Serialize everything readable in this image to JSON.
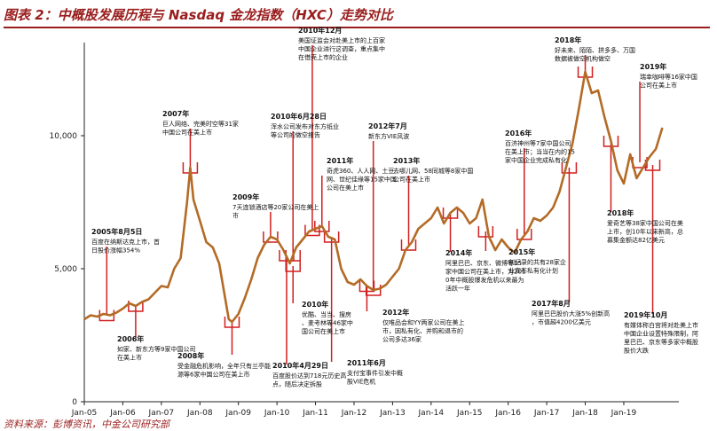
{
  "title": "图表 2：中概股发展历程与 Nasdaq 金龙指数（HXC）走势对比",
  "source": "资料来源：彭博资讯，中金公司研究部",
  "colors": {
    "line": "#b36b26",
    "annotation": "#d11f1f",
    "axis": "#222222",
    "title": "#9a1d1d"
  },
  "chart_data": {
    "type": "line",
    "xlabel": "",
    "ylabel": "",
    "x_ticks": [
      "Jan-05",
      "Jan-06",
      "Jan-07",
      "Jan-08",
      "Jan-09",
      "Jan-10",
      "Jan-11",
      "Jan-12",
      "Jan-13",
      "Jan-14",
      "Jan-15",
      "Jan-16",
      "Jan-17",
      "Jan-18",
      "Jan-19"
    ],
    "y_ticks": [
      0,
      5000,
      10000
    ],
    "y_tick_labels": [
      "0",
      "5,000",
      "10,000"
    ],
    "ylim": [
      0,
      13500
    ],
    "xlim": [
      "2005-01",
      "2020-02"
    ],
    "grid": false,
    "series": [
      {
        "x": [
          "2005-01",
          "2005-03",
          "2005-05",
          "2005-07",
          "2005-09",
          "2005-11",
          "2006-01",
          "2006-03",
          "2006-05",
          "2006-07",
          "2006-09",
          "2006-11",
          "2007-01",
          "2007-03",
          "2007-05",
          "2007-07",
          "2007-09",
          "2007-10",
          "2007-11",
          "2008-01",
          "2008-03",
          "2008-05",
          "2008-07",
          "2008-09",
          "2008-10",
          "2008-11",
          "2009-01",
          "2009-03",
          "2009-05",
          "2009-07",
          "2009-09",
          "2009-11",
          "2010-01",
          "2010-03",
          "2010-05",
          "2010-07",
          "2010-09",
          "2010-11",
          "2011-01",
          "2011-03",
          "2011-05",
          "2011-07",
          "2011-09",
          "2011-11",
          "2012-01",
          "2012-03",
          "2012-05",
          "2012-07",
          "2012-09",
          "2012-11",
          "2013-01",
          "2013-03",
          "2013-05",
          "2013-07",
          "2013-09",
          "2013-11",
          "2014-01",
          "2014-03",
          "2014-05",
          "2014-07",
          "2014-09",
          "2014-11",
          "2015-01",
          "2015-03",
          "2015-05",
          "2015-07",
          "2015-09",
          "2015-11",
          "2016-01",
          "2016-03",
          "2016-05",
          "2016-07",
          "2016-09",
          "2016-11",
          "2017-01",
          "2017-03",
          "2017-05",
          "2017-07",
          "2017-09",
          "2017-11",
          "2018-01",
          "2018-03",
          "2018-05",
          "2018-07",
          "2018-09",
          "2018-11",
          "2019-01",
          "2019-03",
          "2019-05",
          "2019-07",
          "2019-09",
          "2019-11",
          "2020-01"
        ],
        "values": [
          3100,
          3250,
          3200,
          3300,
          3250,
          3350,
          3500,
          3700,
          3600,
          3750,
          3850,
          4100,
          4350,
          4300,
          5000,
          5400,
          7500,
          8800,
          7600,
          6800,
          6000,
          5800,
          5200,
          3800,
          3100,
          3000,
          3300,
          3900,
          4600,
          5400,
          5900,
          6200,
          6100,
          5700,
          5200,
          5800,
          6100,
          6400,
          6500,
          6600,
          6200,
          6100,
          5000,
          4500,
          4400,
          4600,
          4350,
          4200,
          4250,
          4400,
          4700,
          5000,
          5700,
          6000,
          6500,
          6700,
          6900,
          7300,
          6700,
          7100,
          7300,
          7100,
          6700,
          6900,
          7600,
          6200,
          5700,
          6100,
          5800,
          5600,
          6100,
          6400,
          6900,
          6800,
          7000,
          7300,
          7900,
          8800,
          9700,
          11000,
          12400,
          11600,
          11700,
          10700,
          9800,
          8700,
          8200,
          9300,
          8400,
          8800,
          9200,
          9500,
          10300
        ]
      }
    ],
    "annotations": [
      {
        "date": "2005年8月5日",
        "text": "百度在纳斯达克上市，首日股价涨幅354%"
      },
      {
        "date": "2006年",
        "text": "如家、新东方等9家中国公司在美上市"
      },
      {
        "date": "2007年",
        "text": "巨人网络、完美时空等31家中国公司在美上市"
      },
      {
        "date": "2008年",
        "text": "受金融危机影响，全年只有兰亭能源等6家中国公司在美上市"
      },
      {
        "date": "2009年",
        "text": "7天连锁酒店等20家公司在美上市"
      },
      {
        "date": "2010年12月",
        "text": "美国证监会对赴美上市的上百家中国企业进行这调查，重点集中在借壳上市的企业"
      },
      {
        "date": "2010年6月28日",
        "text": "浑水公司发布对东方纸业等公司的做空报告"
      },
      {
        "date": "2010年",
        "text": "优酷、当当、搜房、麦考林等46家中国公司在美上市"
      },
      {
        "date": "2010年4月29日",
        "text": "百度股价达到718元历史高点，随后决定拆股"
      },
      {
        "date": "2011年",
        "text": "奇虎360、人人网、土豆网、世纪佳缘等15家中国公司在美上市"
      },
      {
        "date": "2011年6月",
        "text": "支付宝事件引发中概股VIE危机"
      },
      {
        "date": "2012年7月",
        "text": "新东方VIE风波"
      },
      {
        "date": "2012年",
        "text": "仅唯品会和YY两家公司在美上市，因私有化、并购和退市的公司多达36家"
      },
      {
        "date": "2013年",
        "text": "去哪儿网、58同城等8家中国公司在美上市"
      },
      {
        "date": "2014年",
        "text": "阿里巴巴、京东、微博等15家中国公司在美上市，为2010年中概股爆发危机以来最为活跃一年"
      },
      {
        "date": "2015年",
        "text": "创纪录的共有28家企业宣布私有化计划"
      },
      {
        "date": "2016年",
        "text": "百济神州等7家中国公司在美上市；当当在内的15家中国企业完成私有化"
      },
      {
        "date": "2017年8月",
        "text": "阿里巴巴股价大涨5%创新高，市值超4200亿美元"
      },
      {
        "date": "2018年",
        "text": "好未来、陌陌、拼多多、万国数据被做空机构做空"
      },
      {
        "date": "2018年",
        "text": "爱奇艺等38家中国公司在美上市，创10年以来新高，总募集金额达82亿美元"
      },
      {
        "date": "2019年",
        "text": "瑞幸咖啡等16家中国公司在美上市"
      },
      {
        "date": "2019年10月",
        "text": "有媒体称白宫将对赴美上市中国企业设置特殊限制，阿里巴巴、京东等多家中概股股价大跌"
      }
    ]
  }
}
